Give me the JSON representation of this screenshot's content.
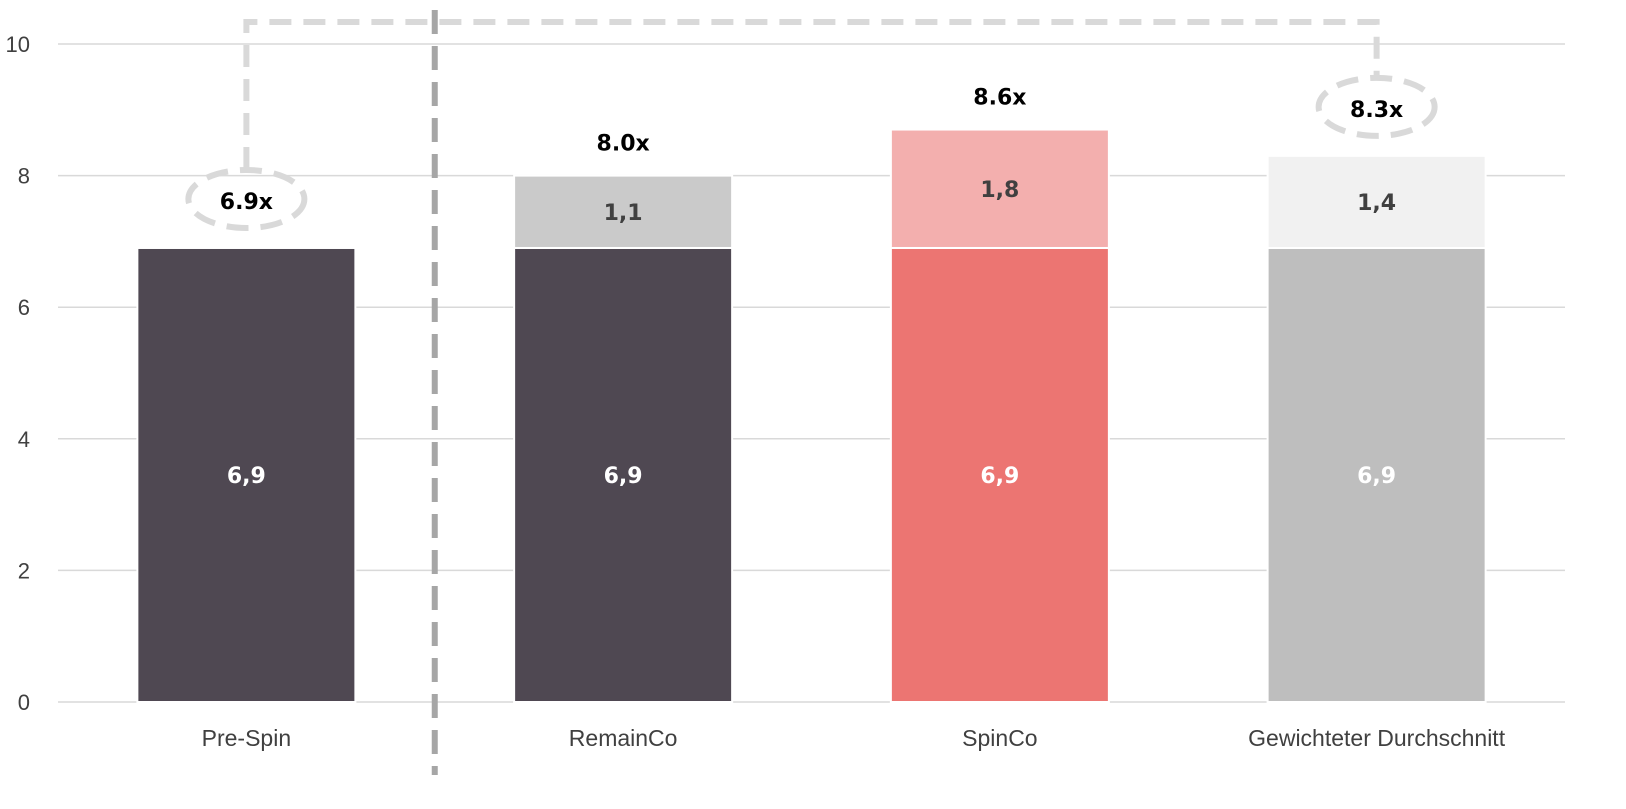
{
  "chart_data": {
    "type": "bar",
    "stacked": true,
    "categories": [
      "Pre-Spin",
      "RemainCo",
      "SpinCo",
      "Gewichteter Durchschnitt"
    ],
    "series": [
      {
        "values": [
          6.9,
          6.9,
          6.9,
          6.9
        ],
        "labels": [
          "6,9",
          "6,9",
          "6,9",
          "6,9"
        ],
        "colors": [
          "#4f4852",
          "#4f4852",
          "#ec7572",
          "#bebebe"
        ],
        "label_colors": [
          "#ffffff",
          "#ffffff",
          "#ffffff",
          "#ffffff"
        ]
      },
      {
        "values": [
          null,
          1.1,
          1.8,
          1.4
        ],
        "labels": [
          "",
          "1,1",
          "1,8",
          "1,4"
        ],
        "colors": [
          "",
          "#cacaca",
          "#f3afae",
          "#f1f1f1"
        ],
        "label_colors": [
          "",
          "#404040",
          "#404040",
          "#404040"
        ]
      }
    ],
    "totals": [
      "6.9x",
      "8.0x",
      "8.6x",
      "8.3x"
    ],
    "highlighted_totals": [
      "6.9x",
      "8.3x"
    ],
    "yticks": [
      "0",
      "2",
      "4",
      "6",
      "8",
      "10"
    ],
    "ylim": [
      0,
      10
    ],
    "grid": true,
    "legend": "none",
    "colors": {
      "grid": "#d9d9d9",
      "divider": "#a6a6a6",
      "connector": "#d9d9d9"
    }
  }
}
